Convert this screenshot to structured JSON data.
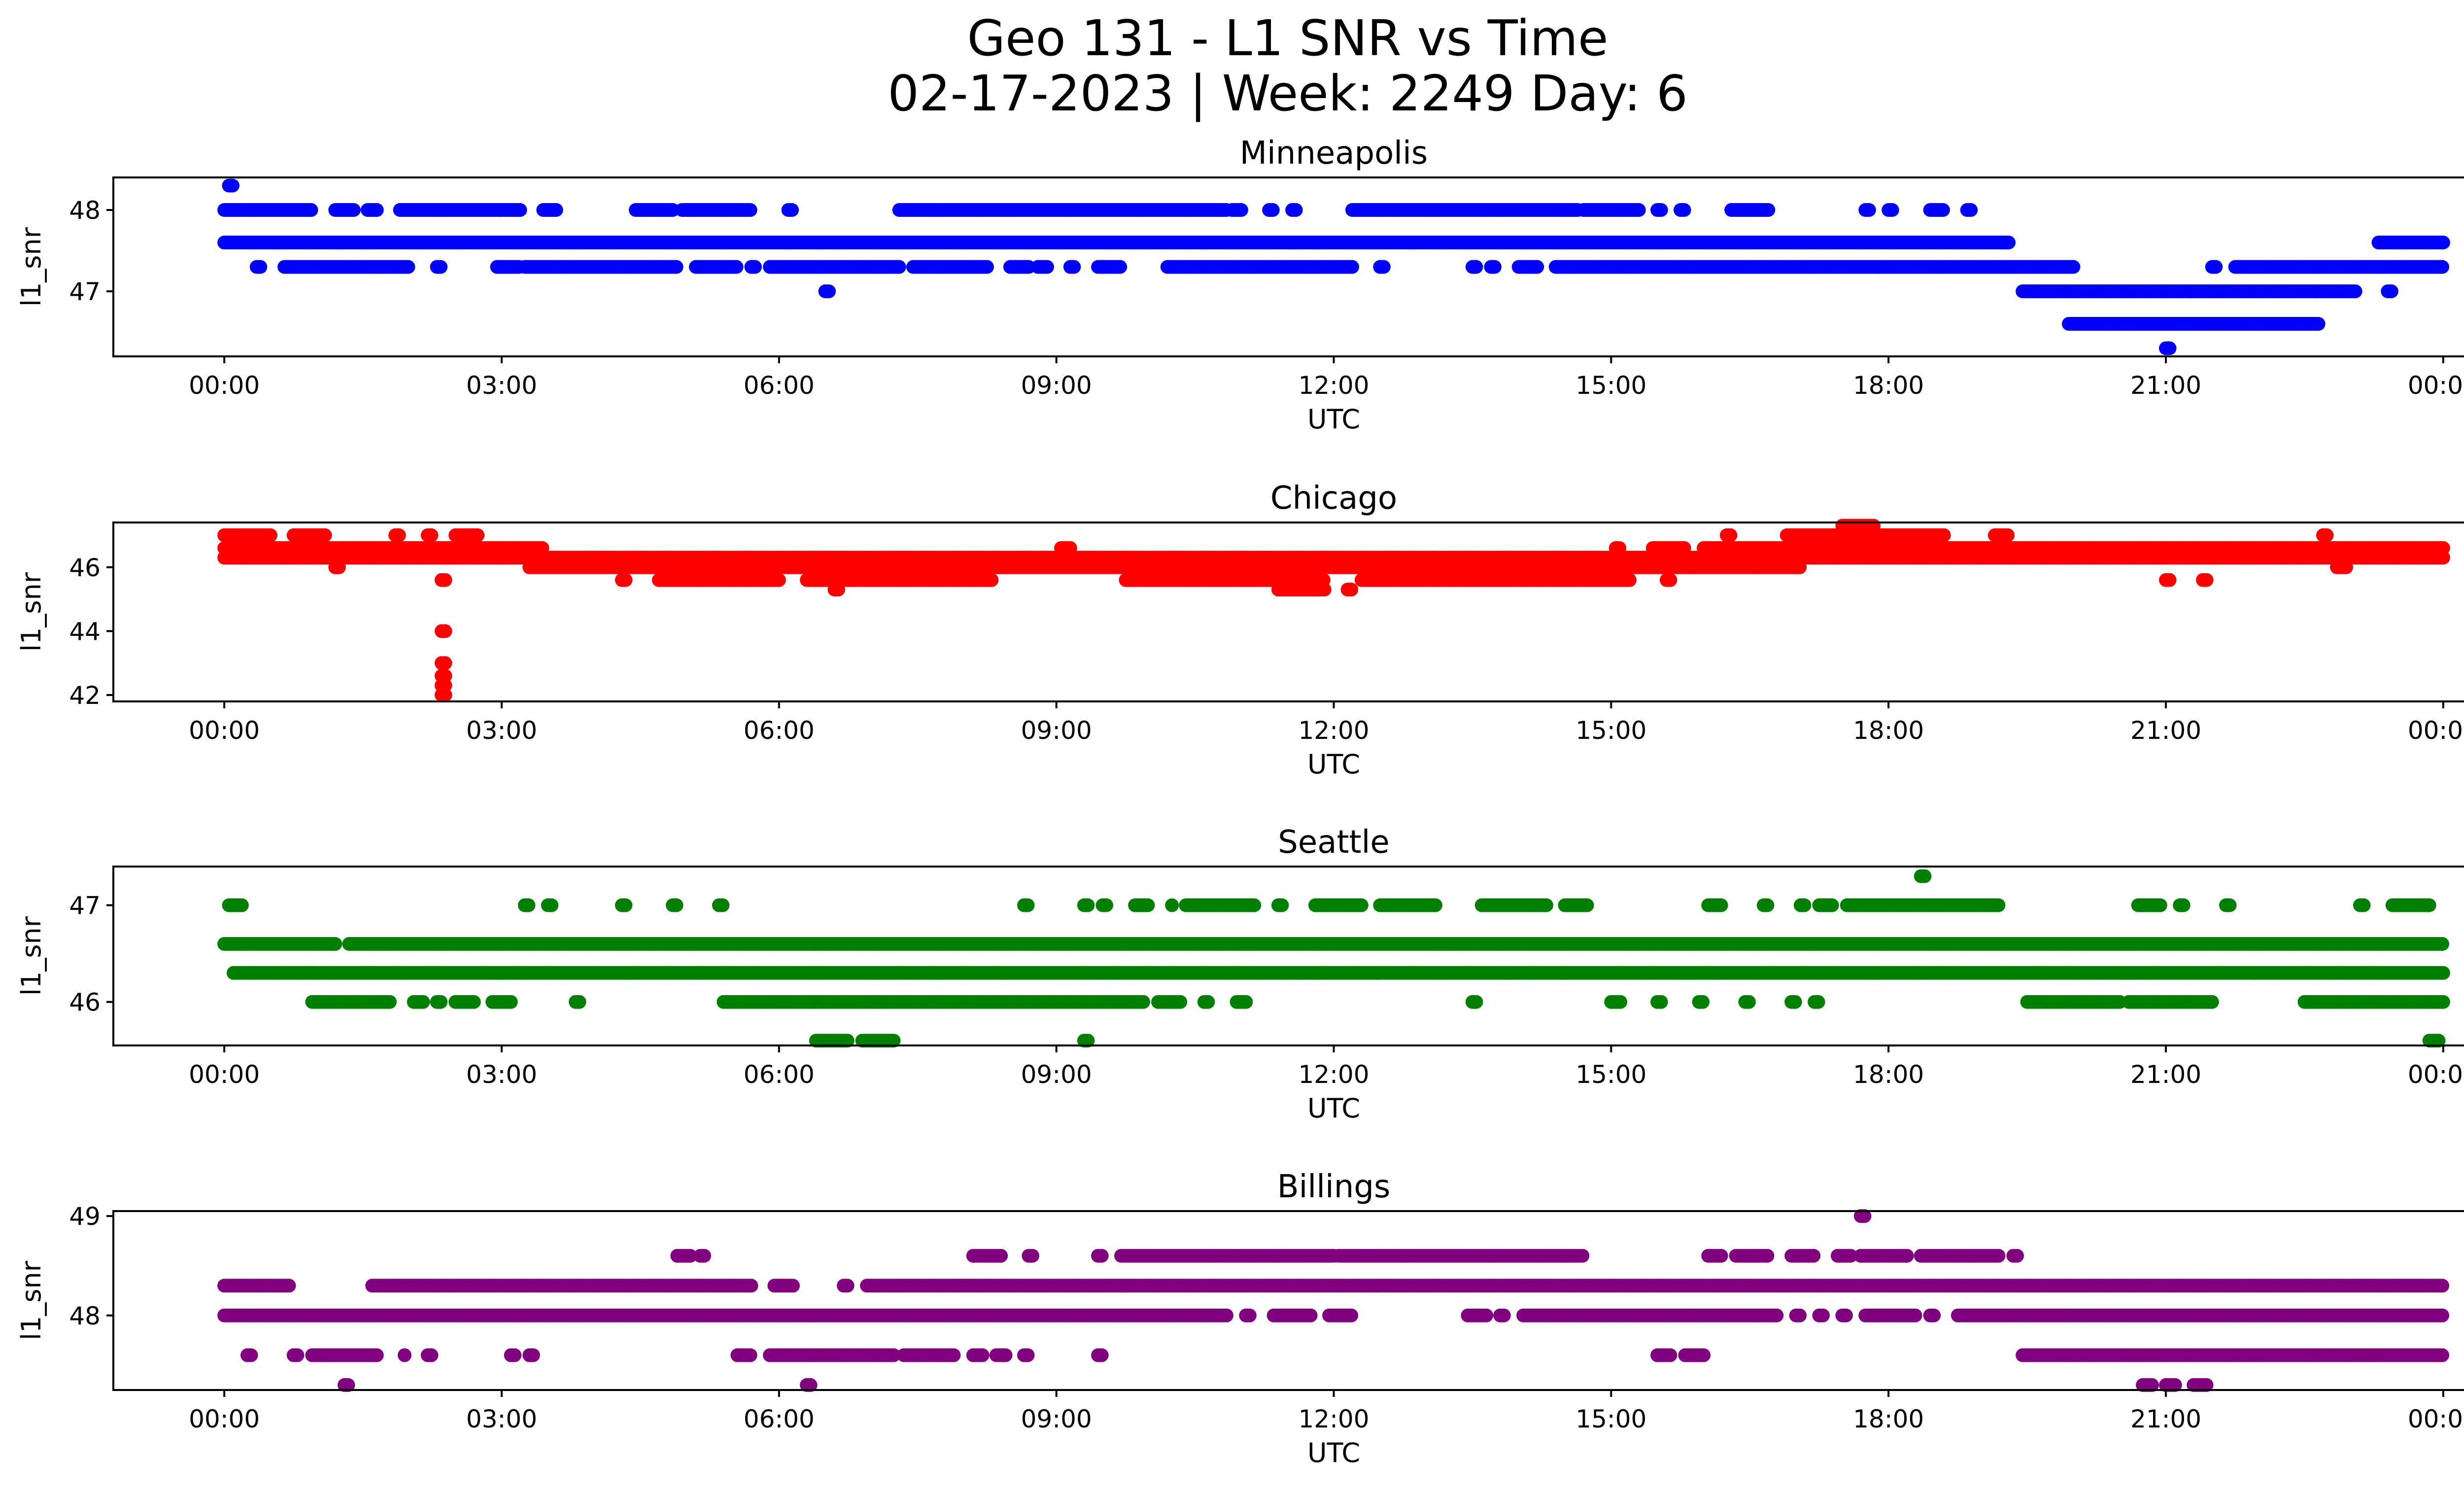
{
  "figure": {
    "title_line1": "Geo 131 - L1 SNR vs Time",
    "title_line2": "02-17-2023 | Week: 2249 Day: 6"
  },
  "chart_data": [
    {
      "type": "scatter",
      "title": "Minneapolis",
      "xlabel": "UTC",
      "ylabel": "l1_snr",
      "color": "#0000ff",
      "xticks": [
        "00:00",
        "03:00",
        "06:00",
        "09:00",
        "12:00",
        "15:00",
        "18:00",
        "21:00",
        "00:00"
      ],
      "xlim_hours": [
        -1.2,
        25.2
      ],
      "yticks": [
        47,
        48
      ],
      "ylim": [
        46.2,
        48.4
      ],
      "levels": [
        {
          "y": 48.3,
          "ranges": [
            [
              0.05,
              0.1
            ]
          ]
        },
        {
          "y": 48.0,
          "ranges": [
            [
              0,
              0.95
            ],
            [
              1.2,
              1.4
            ],
            [
              1.55,
              1.65
            ],
            [
              1.9,
              3.2
            ],
            [
              3.45,
              3.6
            ],
            [
              4.45,
              4.85
            ],
            [
              4.95,
              5.7
            ],
            [
              6.1,
              6.15
            ],
            [
              7.3,
              10.85
            ],
            [
              10.9,
              11.0
            ],
            [
              11.3,
              11.35
            ],
            [
              11.55,
              11.6
            ],
            [
              12.2,
              14.65
            ],
            [
              14.7,
              15.3
            ],
            [
              15.5,
              15.55
            ],
            [
              15.75,
              15.8
            ],
            [
              16.3,
              16.7
            ],
            [
              17.75,
              17.8
            ],
            [
              18.0,
              18.05
            ],
            [
              18.45,
              18.6
            ],
            [
              18.85,
              18.9
            ]
          ]
        },
        {
          "y": 47.6,
          "ranges": [
            [
              0,
              19.3
            ],
            [
              23.3,
              24.0
            ]
          ]
        },
        {
          "y": 47.3,
          "ranges": [
            [
              0.35,
              0.4
            ],
            [
              0.65,
              2.0
            ],
            [
              2.3,
              2.35
            ],
            [
              2.95,
              3.2
            ],
            [
              3.25,
              4.9
            ],
            [
              5.1,
              5.55
            ],
            [
              5.7,
              5.75
            ],
            [
              5.9,
              7.3
            ],
            [
              7.45,
              8.25
            ],
            [
              8.5,
              8.7
            ],
            [
              8.8,
              8.9
            ],
            [
              9.15,
              9.2
            ],
            [
              9.45,
              9.7
            ],
            [
              10.2,
              12.2
            ],
            [
              12.5,
              12.55
            ],
            [
              13.5,
              13.55
            ],
            [
              13.7,
              13.75
            ],
            [
              14.0,
              14.2
            ],
            [
              14.4,
              20.0
            ],
            [
              21.5,
              21.55
            ],
            [
              21.75,
              24.0
            ]
          ]
        },
        {
          "y": 47.0,
          "ranges": [
            [
              6.5,
              6.55
            ],
            [
              19.45,
              23.05
            ],
            [
              23.4,
              23.45
            ]
          ]
        },
        {
          "y": 46.6,
          "ranges": [
            [
              19.95,
              22.65
            ]
          ]
        },
        {
          "y": 46.3,
          "ranges": [
            [
              21.0,
              21.05
            ]
          ]
        }
      ]
    },
    {
      "type": "scatter",
      "title": "Chicago",
      "xlabel": "UTC",
      "ylabel": "l1_snr",
      "color": "#ff0000",
      "xticks": [
        "00:00",
        "03:00",
        "06:00",
        "09:00",
        "12:00",
        "15:00",
        "18:00",
        "21:00",
        "00:00"
      ],
      "xlim_hours": [
        -1.2,
        25.2
      ],
      "yticks": [
        42,
        44,
        46
      ],
      "ylim": [
        41.8,
        47.4
      ],
      "levels": [
        {
          "y": 47.3,
          "ranges": [
            [
              17.5,
              17.85
            ]
          ]
        },
        {
          "y": 47.0,
          "ranges": [
            [
              0,
              0.5
            ],
            [
              0.75,
              1.1
            ],
            [
              1.85,
              1.9
            ],
            [
              2.2,
              2.25
            ],
            [
              2.5,
              2.75
            ],
            [
              16.25,
              16.3
            ],
            [
              16.9,
              18.6
            ],
            [
              19.15,
              19.3
            ],
            [
              22.7,
              22.75
            ]
          ]
        },
        {
          "y": 46.6,
          "ranges": [
            [
              0,
              3.45
            ],
            [
              9.05,
              9.15
            ],
            [
              15.05,
              15.1
            ],
            [
              15.45,
              15.8
            ],
            [
              16.0,
              24.0
            ]
          ]
        },
        {
          "y": 46.3,
          "ranges": [
            [
              0,
              24.0
            ]
          ]
        },
        {
          "y": 46.0,
          "ranges": [
            [
              1.2,
              1.25
            ],
            [
              3.3,
              17.05
            ],
            [
              22.85,
              22.95
            ]
          ]
        },
        {
          "y": 45.6,
          "ranges": [
            [
              2.35,
              2.4
            ],
            [
              4.3,
              4.35
            ],
            [
              4.7,
              6.0
            ],
            [
              6.3,
              8.3
            ],
            [
              9.75,
              11.9
            ],
            [
              12.3,
              15.2
            ],
            [
              15.6,
              15.65
            ],
            [
              21.0,
              21.05
            ],
            [
              21.4,
              21.45
            ]
          ]
        },
        {
          "y": 45.3,
          "ranges": [
            [
              6.6,
              6.65
            ],
            [
              11.4,
              11.9
            ],
            [
              12.15,
              12.2
            ]
          ]
        },
        {
          "y": 44.0,
          "ranges": [
            [
              2.35,
              2.4
            ]
          ]
        },
        {
          "y": 43.0,
          "ranges": [
            [
              2.35,
              2.4
            ]
          ]
        },
        {
          "y": 42.6,
          "ranges": [
            [
              2.35,
              2.4
            ]
          ]
        },
        {
          "y": 42.3,
          "ranges": [
            [
              2.35,
              2.4
            ]
          ]
        },
        {
          "y": 42.0,
          "ranges": [
            [
              2.35,
              2.4
            ]
          ]
        }
      ]
    },
    {
      "type": "scatter",
      "title": "Seattle",
      "xlabel": "UTC",
      "ylabel": "l1_snr",
      "color": "#008000",
      "xticks": [
        "00:00",
        "03:00",
        "06:00",
        "09:00",
        "12:00",
        "15:00",
        "18:00",
        "21:00",
        "00:00"
      ],
      "xlim_hours": [
        -1.2,
        25.2
      ],
      "yticks": [
        46,
        47
      ],
      "ylim": [
        45.55,
        47.4
      ],
      "levels": [
        {
          "y": 47.3,
          "ranges": [
            [
              18.35,
              18.4
            ]
          ]
        },
        {
          "y": 47.0,
          "ranges": [
            [
              0.05,
              0.2
            ],
            [
              3.25,
              3.3
            ],
            [
              3.5,
              3.55
            ],
            [
              4.3,
              4.35
            ],
            [
              4.85,
              4.9
            ],
            [
              5.35,
              5.4
            ],
            [
              8.65,
              8.7
            ],
            [
              9.3,
              9.35
            ],
            [
              9.5,
              9.55
            ],
            [
              9.85,
              10.0
            ],
            [
              10.25,
              10.25
            ],
            [
              10.4,
              11.15
            ],
            [
              11.4,
              11.45
            ],
            [
              11.8,
              12.3
            ],
            [
              12.5,
              13.1
            ],
            [
              13.6,
              14.3
            ],
            [
              14.5,
              14.75
            ],
            [
              16.05,
              16.2
            ],
            [
              16.65,
              16.7
            ],
            [
              17.05,
              17.1
            ],
            [
              17.25,
              17.4
            ],
            [
              17.55,
              19.2
            ],
            [
              20.7,
              20.95
            ],
            [
              21.15,
              21.2
            ],
            [
              21.65,
              21.7
            ],
            [
              23.1,
              23.15
            ],
            [
              23.45,
              23.85
            ]
          ]
        },
        {
          "y": 46.6,
          "ranges": [
            [
              0,
              1.2
            ],
            [
              1.35,
              24.0
            ]
          ]
        },
        {
          "y": 46.3,
          "ranges": [
            [
              0.1,
              24.0
            ]
          ]
        },
        {
          "y": 46.0,
          "ranges": [
            [
              0.95,
              1.8
            ],
            [
              2.05,
              2.15
            ],
            [
              2.3,
              2.35
            ],
            [
              2.5,
              2.7
            ],
            [
              2.9,
              3.1
            ],
            [
              3.8,
              3.85
            ],
            [
              5.4,
              9.95
            ],
            [
              10.1,
              10.35
            ],
            [
              10.6,
              10.65
            ],
            [
              10.95,
              11.05
            ],
            [
              13.5,
              13.55
            ],
            [
              15.0,
              15.1
            ],
            [
              15.5,
              15.55
            ],
            [
              15.95,
              16.0
            ],
            [
              16.45,
              16.5
            ],
            [
              16.95,
              17.0
            ],
            [
              17.2,
              17.25
            ],
            [
              19.5,
              20.5
            ],
            [
              20.6,
              21.5
            ],
            [
              22.5,
              24.0
            ]
          ]
        },
        {
          "y": 45.6,
          "ranges": [
            [
              6.4,
              6.75
            ],
            [
              6.9,
              7.25
            ],
            [
              9.3,
              9.35
            ],
            [
              23.85,
              23.95
            ]
          ]
        }
      ]
    },
    {
      "type": "scatter",
      "title": "Billings",
      "xlabel": "UTC",
      "ylabel": "l1_snr",
      "color": "#800080",
      "xticks": [
        "00:00",
        "03:00",
        "06:00",
        "09:00",
        "12:00",
        "15:00",
        "18:00",
        "21:00",
        "00:00"
      ],
      "xlim_hours": [
        -1.2,
        25.2
      ],
      "yticks": [
        48,
        49
      ],
      "ylim": [
        47.25,
        49.05
      ],
      "levels": [
        {
          "y": 49.0,
          "ranges": [
            [
              17.7,
              17.75
            ]
          ]
        },
        {
          "y": 48.6,
          "ranges": [
            [
              4.9,
              5.05
            ],
            [
              5.15,
              5.2
            ],
            [
              8.1,
              8.4
            ],
            [
              8.7,
              8.75
            ],
            [
              9.45,
              9.5
            ],
            [
              9.7,
              12.0
            ],
            [
              12.05,
              14.7
            ],
            [
              16.05,
              16.2
            ],
            [
              16.35,
              16.7
            ],
            [
              16.95,
              17.2
            ],
            [
              17.45,
              17.6
            ],
            [
              17.7,
              18.2
            ],
            [
              18.35,
              19.2
            ],
            [
              19.35,
              19.4
            ]
          ]
        },
        {
          "y": 48.3,
          "ranges": [
            [
              0,
              0.7
            ],
            [
              1.6,
              5.7
            ],
            [
              5.95,
              6.15
            ],
            [
              6.7,
              6.75
            ],
            [
              6.95,
              24.0
            ]
          ]
        },
        {
          "y": 48.0,
          "ranges": [
            [
              0,
              10.85
            ],
            [
              11.05,
              11.1
            ],
            [
              11.35,
              11.75
            ],
            [
              11.95,
              12.2
            ],
            [
              13.45,
              13.65
            ],
            [
              13.8,
              13.85
            ],
            [
              14.05,
              16.8
            ],
            [
              17.0,
              17.05
            ],
            [
              17.25,
              17.3
            ],
            [
              17.5,
              17.55
            ],
            [
              17.75,
              18.3
            ],
            [
              18.45,
              18.5
            ],
            [
              18.75,
              24.0
            ]
          ]
        },
        {
          "y": 47.6,
          "ranges": [
            [
              0.25,
              0.3
            ],
            [
              0.75,
              0.8
            ],
            [
              0.95,
              1.65
            ],
            [
              1.95,
              1.95
            ],
            [
              2.2,
              2.25
            ],
            [
              3.1,
              3.15
            ],
            [
              3.3,
              3.35
            ],
            [
              5.55,
              5.7
            ],
            [
              5.9,
              7.25
            ],
            [
              7.35,
              7.9
            ],
            [
              8.1,
              8.2
            ],
            [
              8.35,
              8.45
            ],
            [
              8.65,
              8.7
            ],
            [
              9.45,
              9.5
            ],
            [
              15.5,
              15.65
            ],
            [
              15.8,
              16.0
            ],
            [
              19.45,
              24.0
            ]
          ]
        },
        {
          "y": 47.3,
          "ranges": [
            [
              1.3,
              1.35
            ],
            [
              6.3,
              6.35
            ],
            [
              20.75,
              20.85
            ],
            [
              21.0,
              21.1
            ],
            [
              21.3,
              21.45
            ]
          ]
        }
      ]
    }
  ]
}
